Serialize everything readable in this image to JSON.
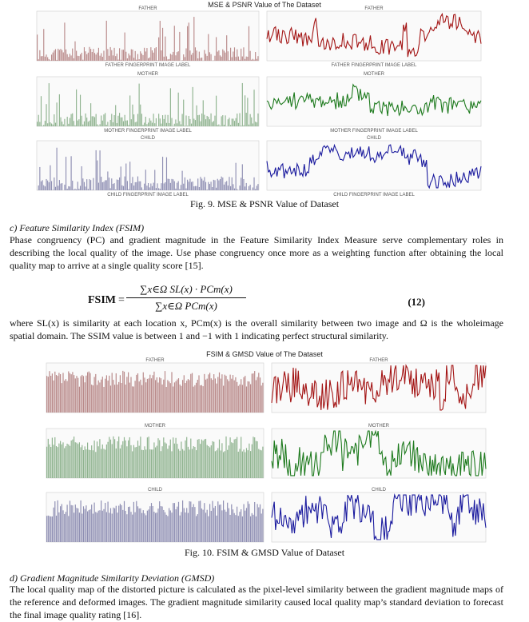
{
  "fig9": {
    "title": "MSE & PSNR  Value of The Dataset",
    "caption": "Fig. 9. MSE & PSNR Value of Dataset",
    "rows": [
      {
        "left_title": "FATHER",
        "right_title": "FATHER",
        "left_xlabel": "FATHER FINGERPRINT IMAGE LABEL",
        "right_xlabel": "FATHER FINGERPRINT IMAGE LABEL",
        "bar_color": "#b98a8a",
        "line_color": "#a31414"
      },
      {
        "left_title": "MOTHER",
        "right_title": "MOTHER",
        "left_xlabel": "MOTHER FINGERPRINT IMAGE LABEL",
        "right_xlabel": "MOTHER FINGERPRINT IMAGE LABEL",
        "bar_color": "#8fb38f",
        "line_color": "#1d7a1d"
      },
      {
        "left_title": "CHILD",
        "right_title": "CHILD",
        "left_xlabel": "CHILD FINGERPRINT IMAGE LABEL",
        "right_xlabel": "CHILD FINGERPRINT IMAGE LABEL",
        "bar_color": "#8f8fb3",
        "line_color": "#1a1a9e"
      }
    ]
  },
  "fsim": {
    "heading": "c)   Feature Similarity Index (FSIM)",
    "paragraph": "Phase congruency (PC) and gradient magnitude in the Feature Similarity Index Measure serve complementary roles in describing the local quality of the image. Use phase congruency once more as a weighting function after obtaining the local quality map to arrive at a single quality score [15].",
    "eq_label": "FSIM",
    "eq_numerator": "∑x∈Ω SL(x) · PCm(x)",
    "eq_denominator": "∑x∈Ω PCm(x)",
    "eq_number": "(12)",
    "where_text": "where SL(x) is similarity at each location x, PCm(x) is the overall similarity between two image and Ω is the wholeimage spatial domain. The SSIM value is between 1 and −1 with 1 indicating perfect structural similarity."
  },
  "fig10": {
    "title": "FSIM & GMSD  Value of The Dataset",
    "caption": "Fig. 10. FSIM & GMSD Value of Dataset",
    "rows": [
      {
        "left_title": "FATHER",
        "right_title": "FATHER",
        "bar_color": "#b98a8a",
        "line_color": "#a31414"
      },
      {
        "left_title": "MOTHER",
        "right_title": "MOTHER",
        "bar_color": "#8fb38f",
        "line_color": "#1d7a1d"
      },
      {
        "left_title": "CHILD",
        "right_title": "CHILD",
        "bar_color": "#8f8fb3",
        "line_color": "#1a1a9e"
      }
    ]
  },
  "gmsd": {
    "heading": "d)   Gradient Magnitude Similarity Deviation (GMSD)",
    "paragraph": "The local quality map of the distorted picture is calculated as the pixel-level similarity between the gradient magnitude maps of the reference and deformed images. The gradient magnitude similarity caused local quality map’s standard deviation to forecast the final image quality rating [16]."
  }
}
